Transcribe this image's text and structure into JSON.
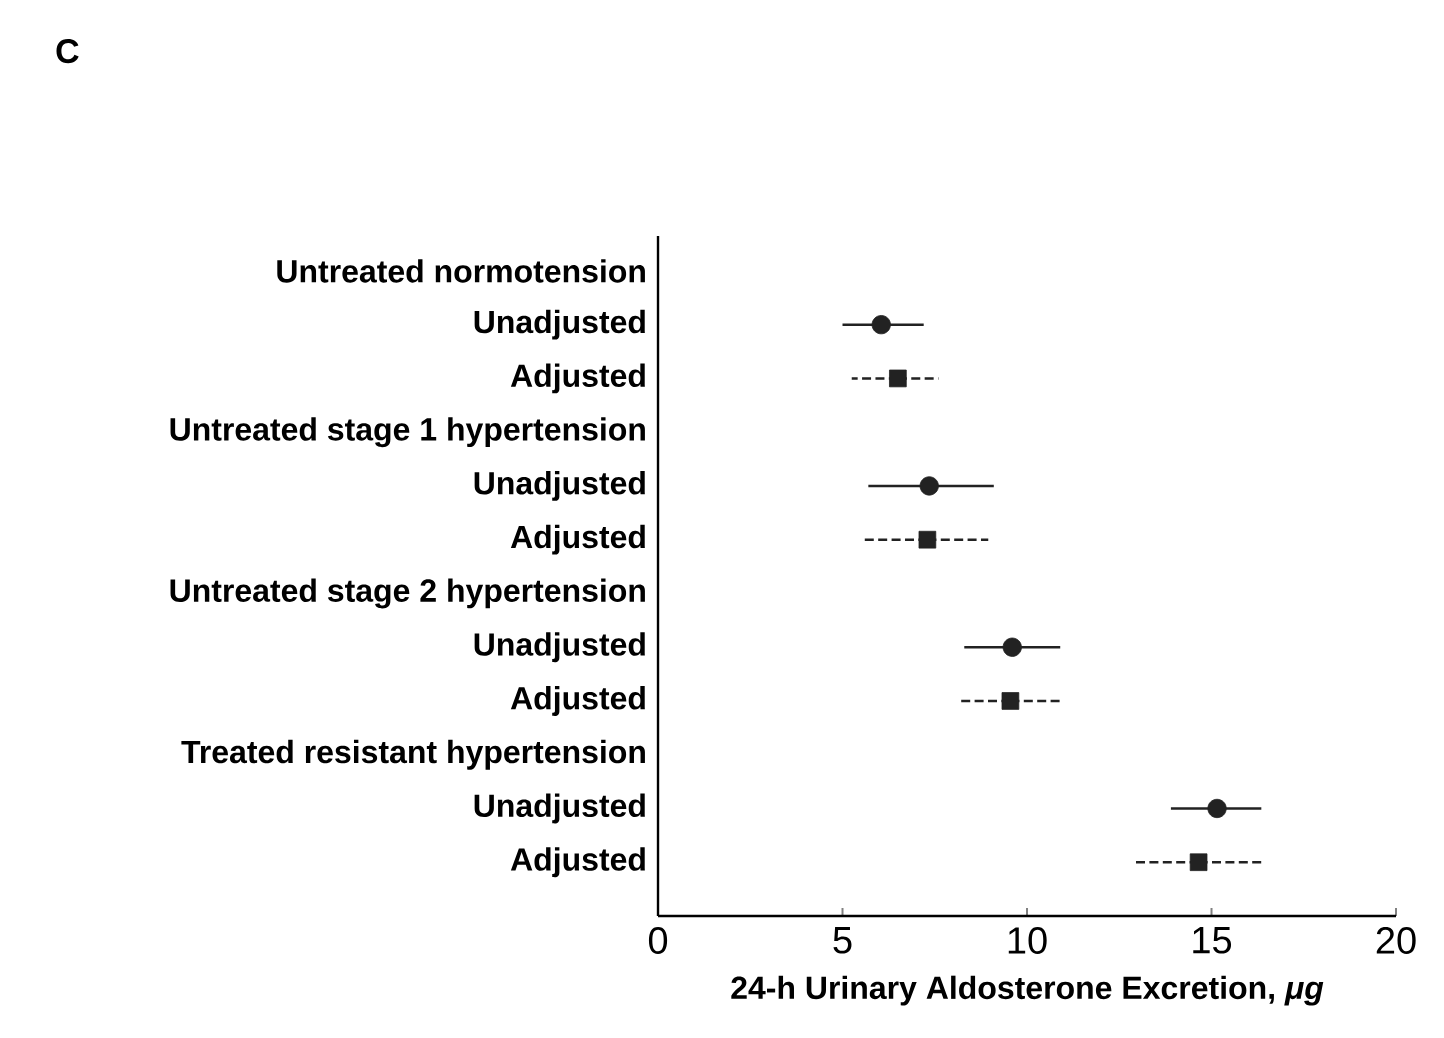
{
  "chart_data": {
    "type": "scatter",
    "orientation": "horizontal",
    "title": "C",
    "xlabel": "24-h Urinary Aldosterone Excretion, *μg*",
    "categories": [
      "Untreated normotension",
      "Unadjusted",
      "Adjusted",
      "Untreated stage 1 hypertension",
      "Unadjusted",
      "Adjusted",
      "Untreated stage 2 hypertension",
      "Unadjusted",
      "Adjusted",
      "Treated resistant hypertension",
      "Unadjusted",
      "Adjusted"
    ],
    "series": [
      {
        "color": "#222222",
        "marker": "circle",
        "line_style": "solid",
        "values": [
          null,
          6.05,
          null,
          null,
          7.35,
          null,
          null,
          9.6,
          null,
          null,
          15.15,
          null
        ],
        "errors": [
          null,
          [
            5.0,
            7.2
          ],
          null,
          null,
          [
            5.7,
            9.1
          ],
          null,
          null,
          [
            8.3,
            10.9
          ],
          null,
          null,
          [
            13.9,
            16.35
          ],
          null
        ]
      },
      {
        "color": "#222222",
        "marker": "square",
        "line_style": "dashed",
        "values": [
          null,
          null,
          6.5,
          null,
          null,
          7.3,
          null,
          null,
          9.55,
          null,
          null,
          14.65
        ],
        "errors": [
          null,
          null,
          [
            5.25,
            7.6
          ],
          null,
          null,
          [
            5.55,
            8.95
          ],
          null,
          null,
          [
            8.2,
            10.9
          ],
          null,
          null,
          [
            12.95,
            16.35
          ]
        ]
      }
    ],
    "xlim": [
      0,
      20
    ],
    "xticks": [
      0,
      5,
      10,
      15,
      20
    ],
    "grid": false
  }
}
